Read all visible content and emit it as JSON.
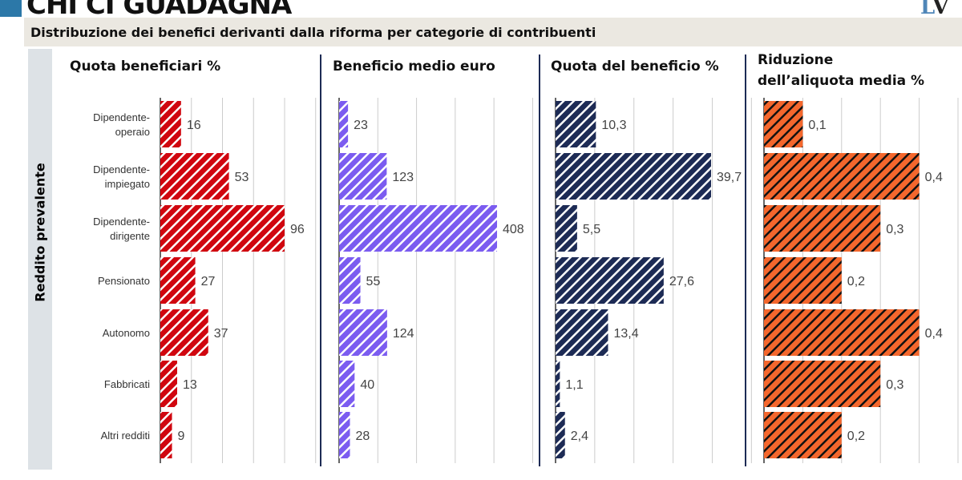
{
  "title": "CHI CI GUADAGNA",
  "subtitle": "Distribuzione dei benefici derivanti dalla riforma per categorie di contribuenti",
  "logo": "LV",
  "chart_data": {
    "type": "bar",
    "orientation": "horizontal",
    "ylabel": "Reddito prevalente",
    "categories": [
      "Dipendente-\noperaio",
      "Dipendente-\nimpiegato",
      "Dipendente-\ndirigente",
      "Pensionato",
      "Autonomo",
      "Fabbricati",
      "Altri redditi"
    ],
    "panels": [
      {
        "title": "Quota beneficiari %",
        "values": [
          16,
          53,
          96,
          27,
          37,
          13,
          9
        ],
        "labels": [
          "16",
          "53",
          "96",
          "27",
          "37",
          "13",
          "9"
        ],
        "xlim": [
          0,
          120
        ],
        "color": "#d0060f",
        "hatch": "#ffffff"
      },
      {
        "title": "Beneficio medio euro",
        "values": [
          23,
          123,
          408,
          55,
          124,
          40,
          28
        ],
        "labels": [
          "23",
          "123",
          "408",
          "55",
          "124",
          "40",
          "28"
        ],
        "xlim": [
          0,
          500
        ],
        "color": "#7b5cf0",
        "hatch": "#ffffff"
      },
      {
        "title": "Quota del beneficio %",
        "values": [
          10.3,
          39.7,
          5.5,
          27.6,
          13.4,
          1.1,
          2.4
        ],
        "labels": [
          "10,3",
          "39,7",
          "5,5",
          "27,6",
          "13,4",
          "1,1",
          "2,4"
        ],
        "xlim": [
          0,
          50
        ],
        "color": "#1d2b55",
        "hatch": "#ffffff"
      },
      {
        "title": "Riduzione\ndell’aliquota media %",
        "values": [
          0.1,
          0.4,
          0.3,
          0.2,
          0.4,
          0.3,
          0.2
        ],
        "labels": [
          "0,1",
          "0,4",
          "0,3",
          "0,2",
          "0,4",
          "0,3",
          "0,2"
        ],
        "xlim": [
          0,
          0.5
        ],
        "color": "#f4672d",
        "hatch": "#111111"
      }
    ],
    "grid": true
  }
}
